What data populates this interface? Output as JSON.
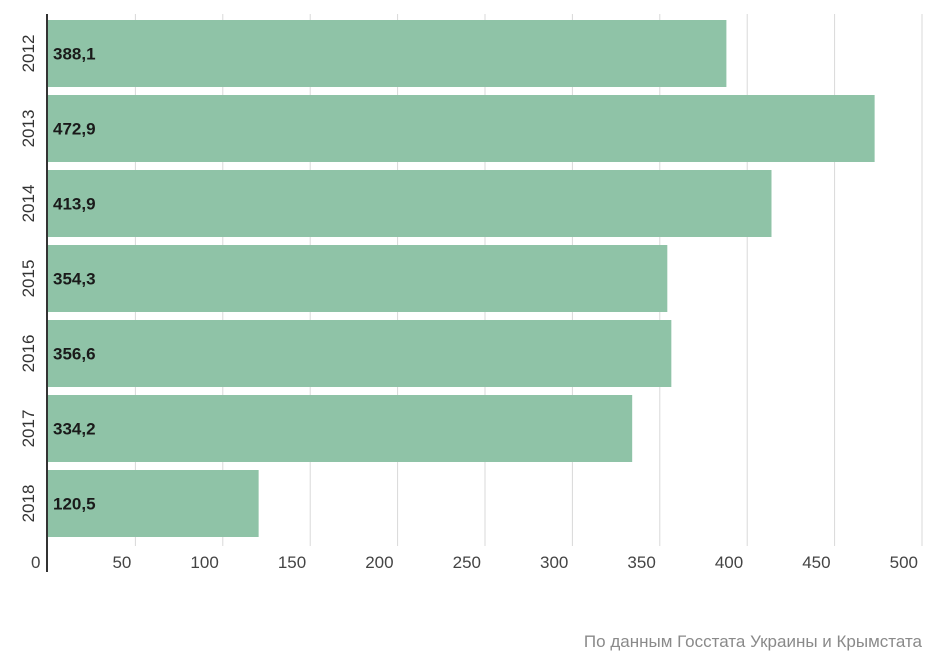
{
  "chart_data": {
    "type": "bar",
    "orientation": "horizontal",
    "categories": [
      "2012",
      "2013",
      "2014",
      "2015",
      "2016",
      "2017",
      "2018"
    ],
    "values": [
      388.1,
      472.9,
      413.9,
      354.3,
      356.6,
      334.2,
      120.5
    ],
    "value_labels": [
      "388,1",
      "472,9",
      "413,9",
      "354,3",
      "356,6",
      "334,2",
      "120,5"
    ],
    "xlim": [
      0,
      500
    ],
    "xticks": [
      0,
      50,
      100,
      150,
      200,
      250,
      300,
      350,
      400,
      450,
      500
    ],
    "grid": true,
    "bar_color": "#8fc3a7"
  },
  "source": "По данным Госстата Украины и Крымстата"
}
